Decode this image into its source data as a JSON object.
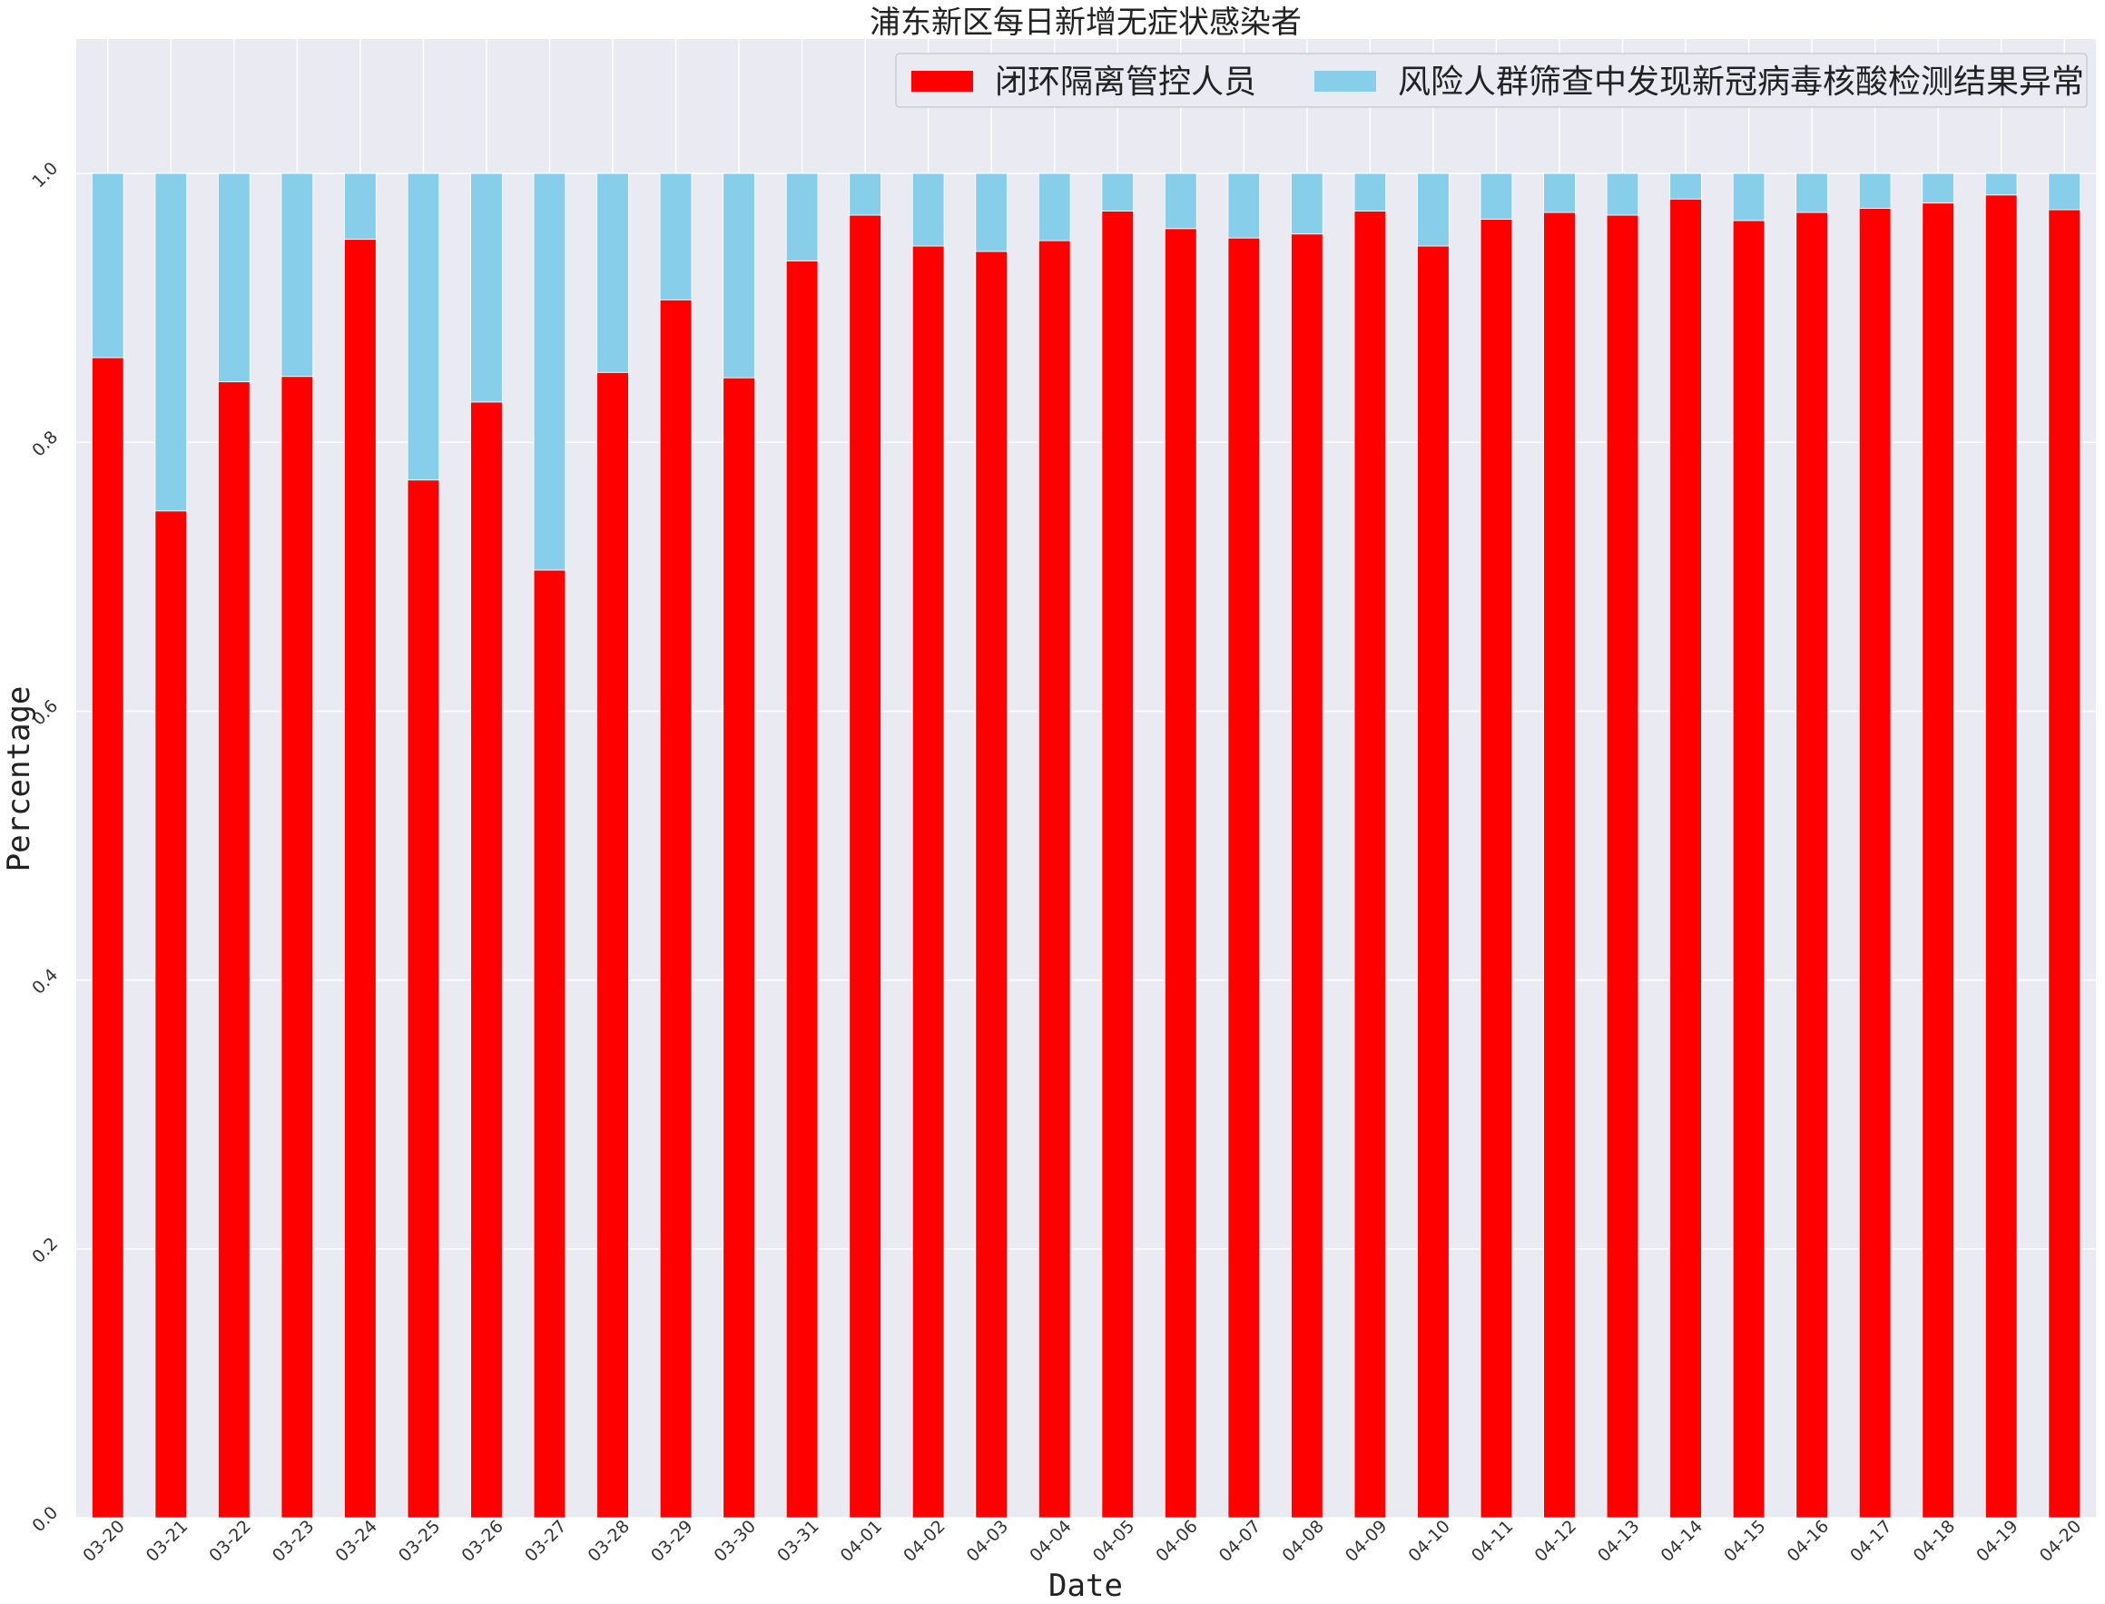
{
  "chart_data": {
    "type": "bar",
    "stacked": true,
    "title": "浦东新区每日新增无症状感染者",
    "xlabel": "Date",
    "ylabel": "Percentage",
    "ylim": [
      0,
      1.1
    ],
    "yticks": [
      "0.0",
      "0.2",
      "0.4",
      "0.6",
      "0.8",
      "1.0"
    ],
    "grid": true,
    "legend_position": "top-right",
    "categories": [
      "03-20",
      "03-21",
      "03-22",
      "03-23",
      "03-24",
      "03-25",
      "03-26",
      "03-27",
      "03-28",
      "03-29",
      "03-30",
      "03-31",
      "04-01",
      "04-02",
      "04-03",
      "04-04",
      "04-05",
      "04-06",
      "04-07",
      "04-08",
      "04-09",
      "04-10",
      "04-11",
      "04-12",
      "04-13",
      "04-14",
      "04-15",
      "04-16",
      "04-17",
      "04-18",
      "04-19",
      "04-20"
    ],
    "series": [
      {
        "name": "闭环隔离管控人员",
        "color": "#ff0000",
        "values": [
          0.863,
          0.749,
          0.845,
          0.849,
          0.951,
          0.772,
          0.83,
          0.705,
          0.852,
          0.906,
          0.848,
          0.935,
          0.969,
          0.946,
          0.942,
          0.95,
          0.972,
          0.959,
          0.952,
          0.955,
          0.972,
          0.946,
          0.966,
          0.971,
          0.969,
          0.981,
          0.965,
          0.971,
          0.974,
          0.978,
          0.984,
          0.973
        ]
      },
      {
        "name": "风险人群筛查中发现新冠病毒核酸检测结果异常",
        "color": "#87ceeb",
        "values": [
          0.137,
          0.251,
          0.155,
          0.151,
          0.049,
          0.228,
          0.17,
          0.295,
          0.148,
          0.094,
          0.152,
          0.065,
          0.031,
          0.054,
          0.058,
          0.05,
          0.028,
          0.041,
          0.048,
          0.045,
          0.028,
          0.054,
          0.034,
          0.029,
          0.031,
          0.019,
          0.035,
          0.029,
          0.026,
          0.022,
          0.016,
          0.027
        ]
      }
    ]
  },
  "style": {
    "plot_background": "#eaeaf2",
    "grid_color": "#ffffff"
  }
}
